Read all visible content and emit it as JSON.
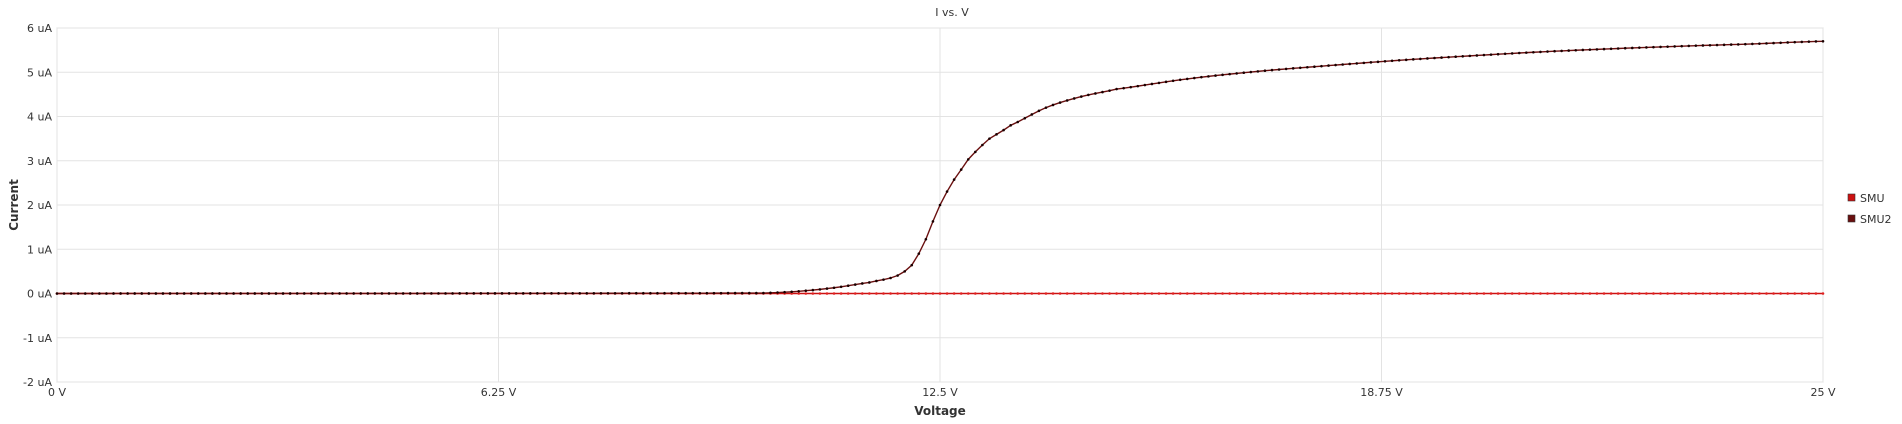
{
  "chart_data": {
    "type": "line",
    "title": "I vs. V",
    "xlabel": "Voltage",
    "ylabel": "Current",
    "xlim": [
      0,
      25
    ],
    "ylim": [
      -2,
      6
    ],
    "x_ticks": [
      0,
      6.25,
      12.5,
      18.75,
      25
    ],
    "x_tick_labels": [
      "0 V",
      "6.25 V",
      "12.5 V",
      "18.75 V",
      "25 V"
    ],
    "y_ticks": [
      -2,
      -1,
      0,
      1,
      2,
      3,
      4,
      5,
      6
    ],
    "y_tick_labels": [
      "-2 uA",
      "-1 uA",
      "0 uA",
      "1 uA",
      "2 uA",
      "3 uA",
      "4 uA",
      "5 uA",
      "6 uA"
    ],
    "grid": true,
    "legend_position": "right",
    "series": [
      {
        "name": "SMU",
        "color": "#cc1111",
        "marker_color": "#e02020",
        "x": [
          0,
          25
        ],
        "values": [
          0,
          0
        ]
      },
      {
        "name": "SMU2",
        "color": "#6a0f0f",
        "marker_color": "#1a0000",
        "x": [
          0,
          10.0,
          10.5,
          11.0,
          11.5,
          11.8,
          12.0,
          12.2,
          12.5,
          12.8,
          13.0,
          13.2,
          13.5,
          14.0,
          14.5,
          15.0,
          16.0,
          17.0,
          18.0,
          19.0,
          20.0,
          21.0,
          22.0,
          23.0,
          24.0,
          25.0
        ],
        "values": [
          0,
          0.01,
          0.05,
          0.13,
          0.25,
          0.35,
          0.5,
          0.9,
          2.0,
          2.8,
          3.2,
          3.5,
          3.8,
          4.2,
          4.45,
          4.62,
          4.85,
          5.02,
          5.15,
          5.27,
          5.37,
          5.46,
          5.53,
          5.59,
          5.64,
          5.7
        ]
      }
    ]
  }
}
